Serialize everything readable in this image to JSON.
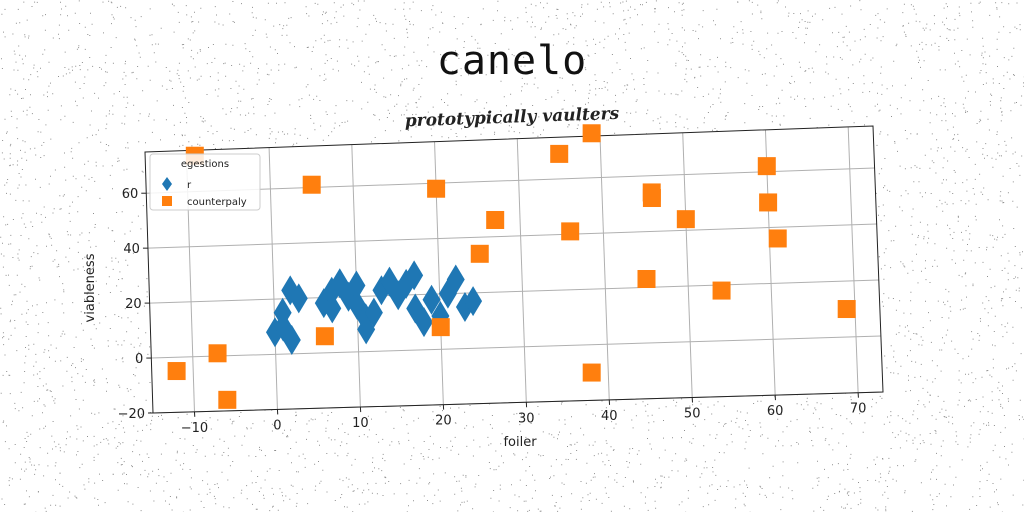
{
  "chart_data": {
    "type": "scatter",
    "title": "canelo",
    "subtitle": "prototypically vaulters",
    "xlabel": "foiler",
    "ylabel": "viableness",
    "xlim": [
      -15,
      73
    ],
    "ylim": [
      -20,
      75
    ],
    "xticks": [
      -10,
      0,
      10,
      20,
      30,
      40,
      50,
      60,
      70
    ],
    "yticks": [
      -20,
      0,
      20,
      40,
      60
    ],
    "grid": true,
    "legend": {
      "title": "egestions",
      "placement": "top-left"
    },
    "colors": {
      "r": "#1f77b4",
      "counterpaly": "#ff7f0e"
    },
    "series": [
      {
        "name": "r",
        "marker": "diamond",
        "points": [
          [
            0,
            8
          ],
          [
            1,
            10
          ],
          [
            1,
            15
          ],
          [
            2,
            5
          ],
          [
            2,
            23
          ],
          [
            3,
            20
          ],
          [
            6,
            18
          ],
          [
            7,
            22
          ],
          [
            7,
            16
          ],
          [
            8,
            25
          ],
          [
            9,
            20
          ],
          [
            10,
            24
          ],
          [
            10,
            17
          ],
          [
            11,
            12
          ],
          [
            11,
            8
          ],
          [
            12,
            14
          ],
          [
            13,
            22
          ],
          [
            14,
            25
          ],
          [
            15,
            20
          ],
          [
            16,
            24
          ],
          [
            17,
            27
          ],
          [
            17,
            15
          ],
          [
            18,
            10
          ],
          [
            19,
            18
          ],
          [
            20,
            12
          ],
          [
            21,
            20
          ],
          [
            22,
            25
          ],
          [
            23,
            15
          ],
          [
            24,
            17
          ]
        ]
      },
      {
        "name": "counterpaly",
        "points": [
          [
            -12,
            -5
          ],
          [
            -7,
            1
          ],
          [
            -6,
            -16
          ],
          [
            -9,
            73
          ],
          [
            6,
            6
          ],
          [
            5,
            61
          ],
          [
            20,
            8
          ],
          [
            20,
            58
          ],
          [
            25,
            34
          ],
          [
            27,
            46
          ],
          [
            35,
            69
          ],
          [
            36,
            41
          ],
          [
            39,
            76
          ],
          [
            38,
            -10
          ],
          [
            45,
            23
          ],
          [
            46,
            54
          ],
          [
            46,
            52
          ],
          [
            50,
            44
          ],
          [
            54,
            18
          ],
          [
            60,
            62
          ],
          [
            60,
            49
          ],
          [
            61,
            36
          ],
          [
            69,
            10
          ]
        ]
      }
    ]
  }
}
